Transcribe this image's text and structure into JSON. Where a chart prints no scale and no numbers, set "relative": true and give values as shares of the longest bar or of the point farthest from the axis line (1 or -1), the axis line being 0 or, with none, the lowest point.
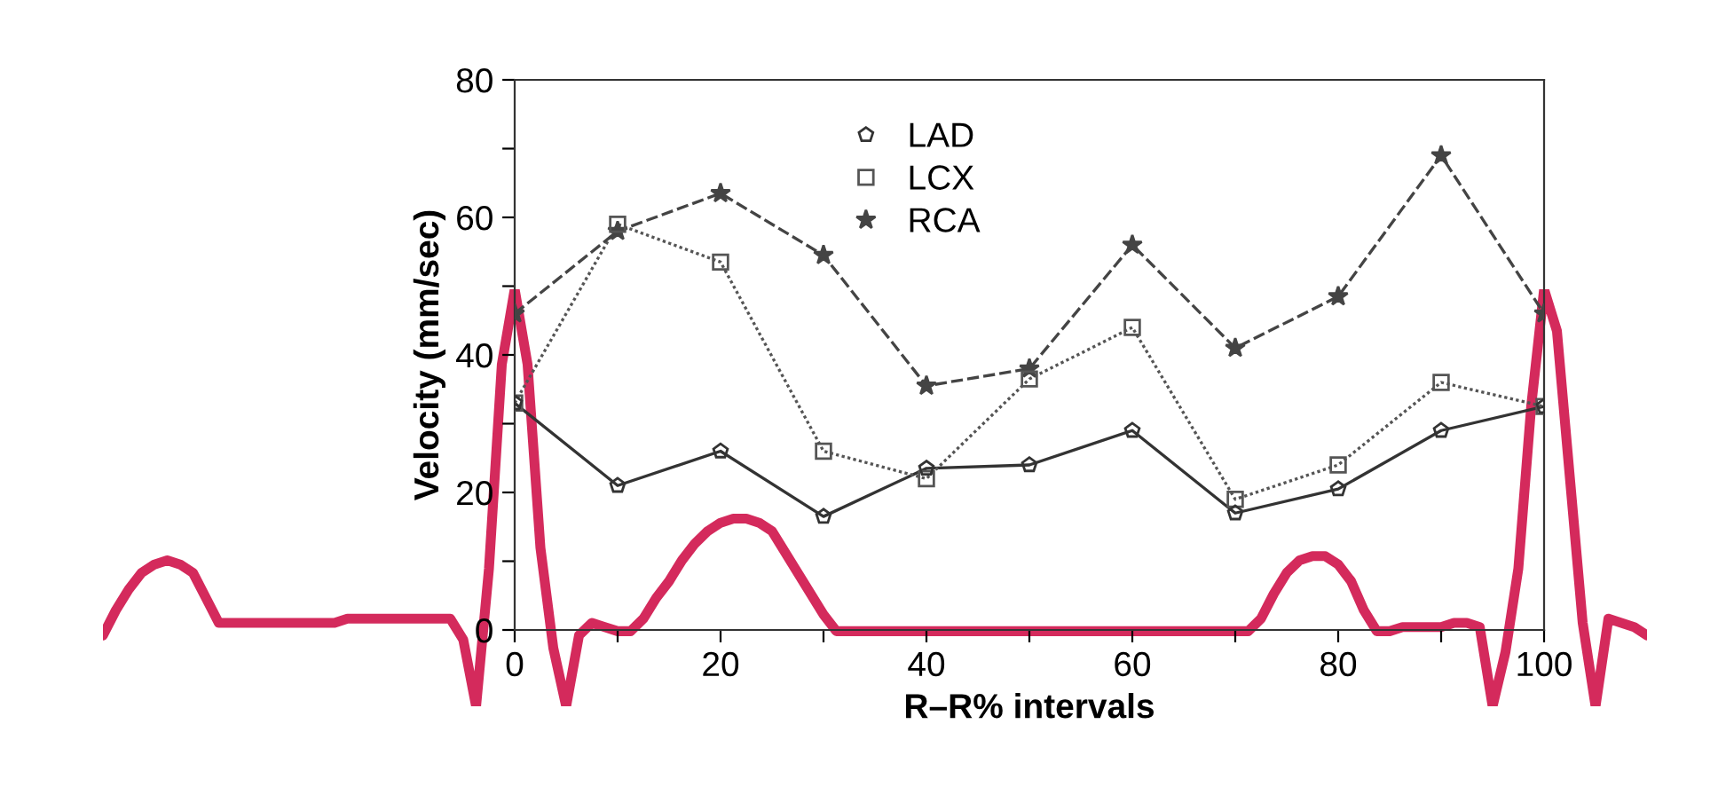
{
  "chart_data": [
    {
      "type": "line",
      "xlabel": "R–R% intervals",
      "ylabel": "Velocity (mm/sec)",
      "x": [
        0,
        10,
        20,
        30,
        40,
        50,
        60,
        70,
        80,
        90,
        100
      ],
      "series": [
        {
          "name": "LAD",
          "color": "#333333",
          "marker": "circle",
          "line_style": "solid",
          "values": [
            33,
            21,
            26,
            16.5,
            23.5,
            24,
            29,
            17,
            20.5,
            29,
            32.5
          ]
        },
        {
          "name": "LCX",
          "color": "#555555",
          "marker": "square",
          "line_style": "dotted",
          "values": [
            33,
            59,
            53.5,
            26,
            22,
            36.5,
            44,
            19,
            24,
            36,
            32.5
          ]
        },
        {
          "name": "RCA",
          "color": "#444444",
          "marker": "star",
          "line_style": "dashed",
          "values": [
            46,
            58,
            63.5,
            54.5,
            35.5,
            38,
            56,
            41,
            48.5,
            69,
            46
          ]
        }
      ],
      "xlim": [
        0,
        100
      ],
      "ylim": [
        0,
        80
      ],
      "xticks": [
        0,
        {
          "value": 10,
          "label": null
        },
        20,
        {
          "value": 30,
          "label": null
        },
        40,
        {
          "value": 50,
          "label": null
        },
        60,
        {
          "value": 70,
          "label": null
        },
        80,
        {
          "value": 90,
          "label": null
        },
        100
      ],
      "yticks": [
        0,
        {
          "value": 10,
          "label": null
        },
        20,
        {
          "value": 30,
          "label": null
        },
        40,
        {
          "value": 50,
          "label": null
        },
        60,
        {
          "value": 70,
          "label": null
        },
        80
      ],
      "grid": false,
      "legend": "top"
    },
    {
      "type": "line",
      "relative": true,
      "tick_labels": false,
      "categories": [
        null,
        null,
        null,
        null,
        null,
        null,
        null,
        null,
        null,
        null,
        null,
        null,
        null,
        null,
        null,
        null,
        null,
        null,
        null,
        null,
        null,
        null,
        null,
        null,
        null,
        null,
        null,
        null,
        null,
        null,
        null,
        null,
        null,
        null,
        null,
        null,
        null,
        null,
        null,
        null,
        null,
        null,
        null,
        null,
        null,
        null,
        null,
        null,
        null,
        null,
        null,
        null,
        null,
        null,
        null,
        null,
        null,
        null,
        null,
        null,
        null,
        null,
        null,
        null,
        null,
        null,
        null,
        null,
        null,
        null,
        null,
        null,
        null,
        null,
        null,
        null,
        null,
        null,
        null,
        null,
        null,
        null,
        null,
        null,
        null,
        null,
        null,
        null,
        null,
        null,
        null,
        null,
        null,
        null,
        null,
        null,
        null,
        null,
        null,
        null,
        null,
        null,
        null,
        null,
        null,
        null,
        null,
        null,
        null,
        null,
        null,
        null,
        null,
        null,
        null,
        null,
        null,
        null,
        null,
        null,
        null
      ],
      "series": [
        {
          "color": "#d42a5c",
          "values": [
            0.17,
            0.23,
            0.28,
            0.32,
            0.34,
            0.35,
            0.34,
            0.32,
            0.26,
            0.2,
            0.2,
            0.2,
            0.2,
            0.2,
            0.2,
            0.2,
            0.2,
            0.2,
            0.2,
            0.21,
            0.21,
            0.21,
            0.21,
            0.21,
            0.21,
            0.21,
            0.21,
            0.21,
            0.16,
            0,
            0.33,
            0.82,
            1,
            0.82,
            0.38,
            0.14,
            0,
            0.17,
            0.2,
            0.19,
            0.18,
            0.18,
            0.21,
            0.26,
            0.3,
            0.35,
            0.39,
            0.42,
            0.44,
            0.45,
            0.45,
            0.44,
            0.42,
            0.37,
            0.32,
            0.27,
            0.22,
            0.18,
            0.18,
            0.18,
            0.18,
            0.18,
            0.18,
            0.18,
            0.18,
            0.18,
            0.18,
            0.18,
            0.18,
            0.18,
            0.18,
            0.18,
            0.18,
            0.18,
            0.18,
            0.18,
            0.18,
            0.18,
            0.18,
            0.18,
            0.18,
            0.18,
            0.18,
            0.18,
            0.18,
            0.18,
            0.18,
            0.18,
            0.18,
            0.18,
            0.21,
            0.27,
            0.32,
            0.35,
            0.36,
            0.36,
            0.34,
            0.3,
            0.23,
            0.18,
            0.18,
            0.19,
            0.19,
            0.19,
            0.19,
            0.2,
            0.2,
            0.19,
            0,
            0.13,
            0.33,
            0.72,
            1,
            0.9,
            0.55,
            0.2,
            0,
            0.21,
            0.2,
            0.19,
            0.17
          ]
        }
      ]
    }
  ]
}
